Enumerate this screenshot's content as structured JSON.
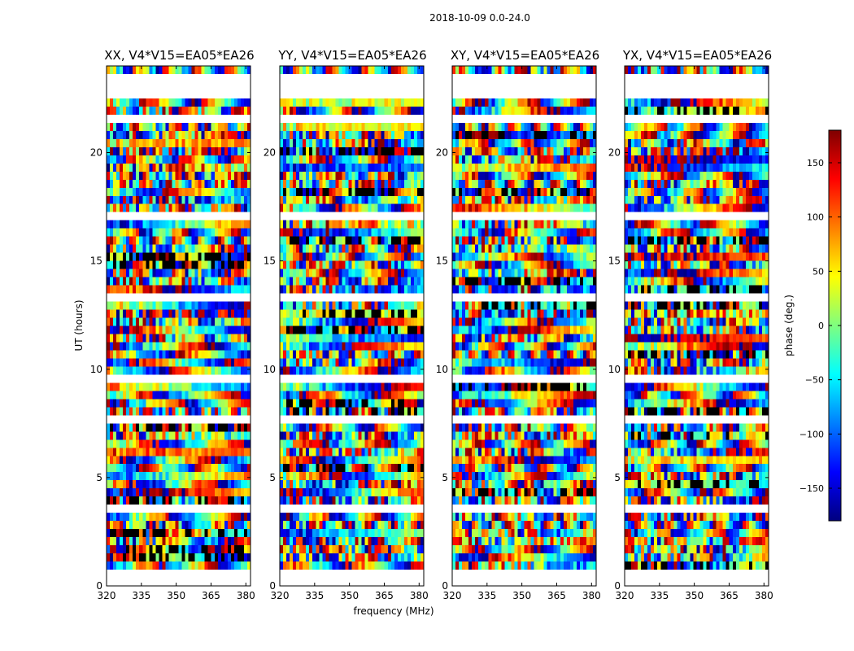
{
  "figure": {
    "suptitle": "2018-10-09 0.0-24.0",
    "xlabel": "frequency (MHz)",
    "ylabel": "UT (hours)"
  },
  "chart_data": {
    "type": "heatmap",
    "title": "2018-10-09 0.0-24.0",
    "xlabel": "frequency (MHz)",
    "ylabel": "UT (hours)",
    "xlim": [
      320,
      382
    ],
    "ylim": [
      0,
      24
    ],
    "x_ticks": [
      320,
      335,
      350,
      365,
      380
    ],
    "y_ticks": [
      0,
      5,
      10,
      15,
      20
    ],
    "panels": [
      {
        "title": "XX, V4*V15=EA05*EA26",
        "polarization": "XX"
      },
      {
        "title": "YY, V4*V15=EA05*EA26",
        "polarization": "YY"
      },
      {
        "title": "XY, V4*V15=EA05*EA26",
        "polarization": "XY"
      },
      {
        "title": "YX, V4*V15=EA05*EA26",
        "polarization": "YX"
      }
    ],
    "blank_rows_hours": [
      0.15,
      0.55,
      1.55,
      3.35,
      3.65,
      7.65,
      7.85,
      9.65,
      11.95,
      13.2,
      17.15,
      21.55,
      22.5,
      22.65,
      23.0,
      23.55
    ],
    "colorbar": {
      "label": "phase (deg.)",
      "range": [
        -180,
        180
      ],
      "ticks": [
        -150,
        -100,
        -50,
        0,
        50,
        100,
        150
      ],
      "colormap": "jet",
      "colors": [
        "#00007f",
        "#0000ff",
        "#007fff",
        "#00ffff",
        "#7fff7f",
        "#ffff00",
        "#ff7f00",
        "#ff0000",
        "#7f0000"
      ]
    }
  }
}
